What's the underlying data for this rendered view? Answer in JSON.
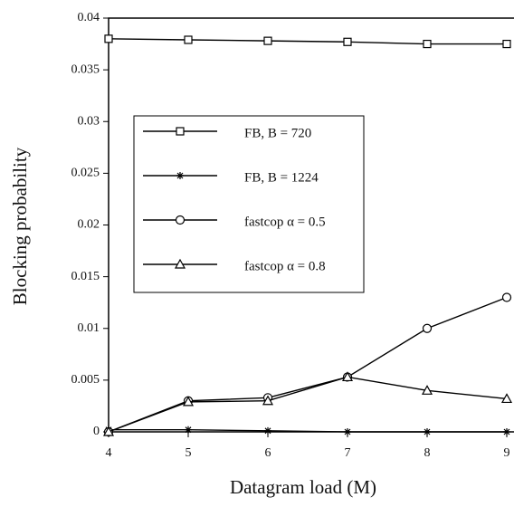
{
  "chart_data": {
    "type": "line",
    "x_label": "Datagram load (M)",
    "y_label": "Blocking probability",
    "x": [
      4,
      5,
      6,
      7,
      8,
      9
    ],
    "series": [
      {
        "name": "FB, B = 720",
        "color": "#000000",
        "marker": "square",
        "values": [
          0.038,
          0.0379,
          0.0378,
          0.0377,
          0.0375,
          0.0375
        ]
      },
      {
        "name": "FB, B = 1224",
        "color": "#000000",
        "marker": "star",
        "values": [
          0.0002,
          0.0002,
          0.0001,
          0.0,
          0.0,
          0.0
        ]
      },
      {
        "name": "fastcop  α = 0.5",
        "color": "#000000",
        "marker": "circle",
        "values": [
          0,
          0.003,
          0.0033,
          0.0053,
          0.01,
          0.013
        ]
      },
      {
        "name": "fastcop  α = 0.8",
        "color": "#000000",
        "marker": "triangle",
        "values": [
          0,
          0.0029,
          0.003,
          0.0053,
          0.004,
          0.0032
        ]
      }
    ],
    "xlim": [
      4,
      9
    ],
    "xticks": [
      4,
      5,
      6,
      7,
      8,
      9
    ],
    "ylim": [
      0,
      0.04
    ],
    "yticks": [
      0,
      0.005,
      0.01,
      0.015,
      0.02,
      0.025,
      0.03,
      0.035,
      0.04
    ],
    "grid": false
  }
}
